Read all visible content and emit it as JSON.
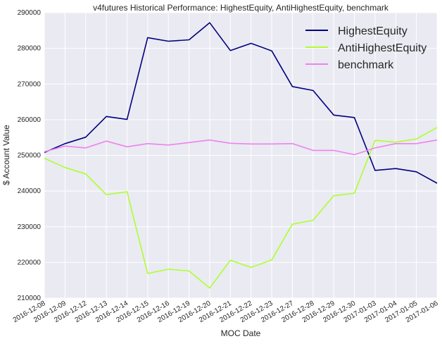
{
  "chart_data": {
    "type": "line",
    "title": "v4futures Historical Performance: HighestEquity, AntiHighestEquity, benchmark",
    "xlabel": "MOC Date",
    "ylabel": "$ Account Value",
    "ylim": [
      210000,
      290000
    ],
    "yticks": [
      210000,
      220000,
      230000,
      240000,
      250000,
      260000,
      270000,
      280000,
      290000
    ],
    "grid": true,
    "legend_position": "top-right",
    "categories": [
      "2016-12-08",
      "2016-12-09",
      "2016-12-12",
      "2016-12-13",
      "2016-12-14",
      "2016-12-15",
      "2016-12-16",
      "2016-12-19",
      "2016-12-20",
      "2016-12-21",
      "2016-12-22",
      "2016-12-23",
      "2016-12-27",
      "2016-12-28",
      "2016-12-29",
      "2016-12-30",
      "2017-01-03",
      "2017-01-04",
      "2017-01-05",
      "2017-01-06"
    ],
    "series": [
      {
        "name": "HighestEquity",
        "color": "#000080",
        "values": [
          250800,
          253300,
          255100,
          260900,
          260100,
          283000,
          282000,
          282400,
          287200,
          279400,
          281400,
          279300,
          269300,
          268200,
          261300,
          260600,
          245800,
          246300,
          245400,
          242200
        ]
      },
      {
        "name": "AntiHighestEquity",
        "color": "#adff2f",
        "values": [
          249200,
          246600,
          244800,
          239000,
          239800,
          216900,
          218100,
          217600,
          212800,
          220600,
          218600,
          220700,
          230700,
          231800,
          238700,
          239400,
          254200,
          253700,
          254600,
          257800
        ]
      },
      {
        "name": "benchmark",
        "color": "#ee82ee",
        "values": [
          251000,
          252600,
          252100,
          254000,
          252400,
          253300,
          252900,
          253600,
          254300,
          253400,
          253200,
          253200,
          253300,
          251400,
          251400,
          250200,
          252100,
          253300,
          253300,
          254300
        ]
      }
    ]
  }
}
